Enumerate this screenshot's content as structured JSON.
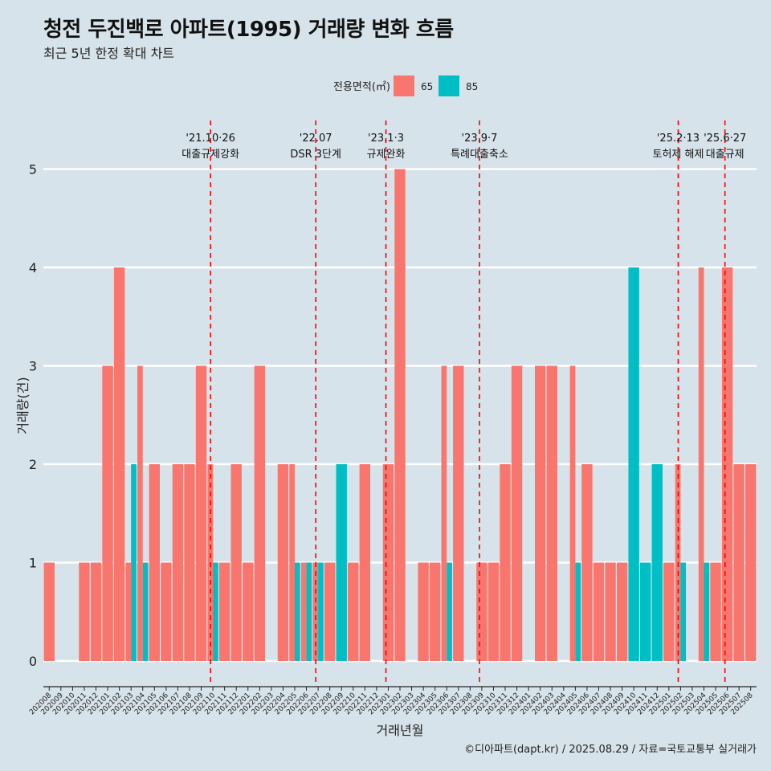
{
  "title": "청전 두진백로 아파트(1995) 거래량 변화 흐름",
  "subtitle": "최근 5년 한정 확대 차트",
  "caption": "©디아파트(dapt.kr) / 2025.08.29 / 자료=국토교통부 실거래가",
  "chart_data": {
    "type": "bar",
    "xlabel": "거래년월",
    "ylabel": "거래량(건)",
    "ylim": [
      0,
      5.4
    ],
    "yticks": [
      0,
      1,
      2,
      3,
      4,
      5
    ],
    "legend": {
      "title": "전용면적(㎡)",
      "position": "top-center"
    },
    "colors": {
      "65": "#f8766d",
      "85": "#00bfc4"
    },
    "categories": [
      "202008",
      "202009",
      "202010",
      "202011",
      "202012",
      "202101",
      "202102",
      "202103",
      "202104",
      "202105",
      "202106",
      "202107",
      "202108",
      "202109",
      "202110",
      "202111",
      "202112",
      "202201",
      "202202",
      "202203",
      "202204",
      "202205",
      "202206",
      "202207",
      "202208",
      "202209",
      "202210",
      "202211",
      "202212",
      "202301",
      "202302",
      "202303",
      "202304",
      "202305",
      "202306",
      "202307",
      "202308",
      "202309",
      "202310",
      "202311",
      "202312",
      "202401",
      "202402",
      "202403",
      "202404",
      "202405",
      "202406",
      "202407",
      "202408",
      "202409",
      "202410",
      "202411",
      "202412",
      "202501",
      "202502",
      "202503",
      "202504",
      "202505",
      "202506",
      "202507",
      "202508"
    ],
    "series": [
      {
        "name": "65",
        "values": [
          1,
          0,
          0,
          1,
          1,
          3,
          4,
          1,
          3,
          2,
          1,
          2,
          2,
          3,
          2,
          1,
          2,
          1,
          3,
          0,
          2,
          2,
          1,
          1,
          1,
          0,
          1,
          2,
          0,
          2,
          5,
          0,
          1,
          1,
          3,
          3,
          0,
          1,
          1,
          2,
          3,
          0,
          3,
          3,
          0,
          3,
          2,
          1,
          1,
          1,
          0,
          0,
          0,
          1,
          2,
          0,
          4,
          1,
          4,
          2,
          2
        ]
      },
      {
        "name": "85",
        "values": [
          0,
          0,
          0,
          0,
          0,
          0,
          0,
          2,
          1,
          0,
          0,
          0,
          0,
          0,
          1,
          0,
          0,
          0,
          0,
          0,
          0,
          1,
          1,
          1,
          0,
          2,
          0,
          0,
          0,
          0,
          0,
          0,
          0,
          0,
          1,
          0,
          0,
          0,
          0,
          0,
          0,
          0,
          0,
          0,
          0,
          1,
          0,
          0,
          0,
          0,
          4,
          1,
          2,
          0,
          1,
          0,
          1,
          0,
          0,
          0,
          0
        ]
      }
    ],
    "annotations": [
      {
        "date": "'21.10·26",
        "label": "대출규제강화",
        "x_index": 14.3
      },
      {
        "date": "'22.07",
        "label": "DSR 3단계",
        "x_index": 23.3
      },
      {
        "date": "'23.1·3",
        "label": "규제완화",
        "x_index": 29.3
      },
      {
        "date": "'23.9·7",
        "label": "특례대출축소",
        "x_index": 37.3
      },
      {
        "date": "'25.2·13",
        "label": "토허제 해제",
        "x_index": 54.3
      },
      {
        "date": "'25.6·27",
        "label": "대출규제",
        "x_index": 58.3
      }
    ]
  }
}
